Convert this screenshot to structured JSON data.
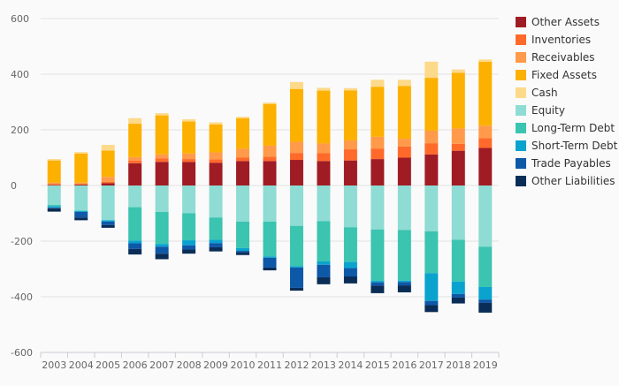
{
  "chart_data": {
    "type": "bar",
    "stacked": true,
    "title": "",
    "xlabel": "",
    "ylabel": "",
    "ylim": [
      -600,
      600
    ],
    "yticks": [
      600,
      400,
      200,
      0,
      -200,
      -400,
      -600
    ],
    "grid": true,
    "legend_position": "right",
    "categories": [
      "2003",
      "2004",
      "2005",
      "2006",
      "2007",
      "2008",
      "2009",
      "2010",
      "2011",
      "2012",
      "2013",
      "2014",
      "2015",
      "2016",
      "2017",
      "2018",
      "2019"
    ],
    "series": [
      {
        "name": "Other Assets",
        "color": "#a01c24",
        "values": [
          2,
          3,
          8,
          80,
          85,
          85,
          82,
          88,
          88,
          92,
          88,
          90,
          95,
          100,
          112,
          125,
          135
        ]
      },
      {
        "name": "Inventories",
        "color": "#ff6a2b",
        "values": [
          3,
          2,
          5,
          10,
          12,
          10,
          12,
          12,
          15,
          25,
          28,
          40,
          38,
          40,
          40,
          25,
          35
        ]
      },
      {
        "name": "Receivables",
        "color": "#ff9a4a",
        "values": [
          5,
          5,
          18,
          12,
          15,
          20,
          25,
          32,
          40,
          40,
          35,
          32,
          42,
          28,
          45,
          55,
          45
        ]
      },
      {
        "name": "Fixed Assets",
        "color": "#fcb100",
        "values": [
          80,
          105,
          95,
          120,
          140,
          115,
          100,
          110,
          150,
          190,
          190,
          180,
          180,
          190,
          190,
          200,
          230
        ]
      },
      {
        "name": "Cash",
        "color": "#fdd98a",
        "values": [
          5,
          5,
          20,
          20,
          8,
          8,
          8,
          5,
          5,
          25,
          10,
          8,
          25,
          22,
          58,
          12,
          8
        ]
      },
      {
        "name": "Equity",
        "color": "#8edcd3",
        "values": [
          -70,
          -90,
          -125,
          -78,
          -95,
          -100,
          -115,
          -130,
          -130,
          -145,
          -128,
          -150,
          -158,
          -160,
          -165,
          -195,
          -220
        ]
      },
      {
        "name": "Long-Term Debt",
        "color": "#3bc4b0",
        "values": [
          -5,
          -2,
          0,
          -120,
          -115,
          -97,
          -80,
          -95,
          -125,
          -145,
          -145,
          -125,
          -185,
          -182,
          -150,
          -150,
          -145
        ]
      },
      {
        "name": "Short-Term Debt",
        "color": "#0aa3cd",
        "values": [
          -5,
          -3,
          -5,
          -10,
          -10,
          -18,
          -12,
          -10,
          -5,
          -5,
          -12,
          -22,
          -5,
          -5,
          -100,
          -45,
          -45
        ]
      },
      {
        "name": "Trade Payables",
        "color": "#0e58a8",
        "values": [
          -2,
          -20,
          -12,
          -20,
          -25,
          -15,
          -15,
          -5,
          -35,
          -73,
          -45,
          -30,
          -12,
          -12,
          -15,
          -12,
          -12
        ]
      },
      {
        "name": "Other Liabilities",
        "color": "#0a2d57",
        "values": [
          -12,
          -10,
          -10,
          -20,
          -20,
          -15,
          -15,
          -10,
          -10,
          -10,
          -25,
          -25,
          -27,
          -25,
          -25,
          -22,
          -35
        ]
      }
    ]
  }
}
